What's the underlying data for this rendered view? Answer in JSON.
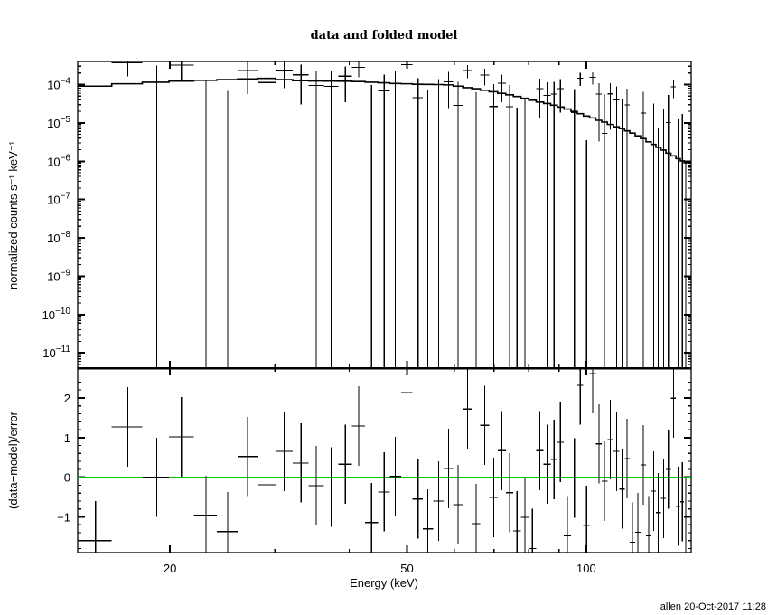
{
  "chart_data": {
    "type": "scatter",
    "title": "data and folded model",
    "footer": "allen  20-Oct-2017 11:28",
    "xlabel": "Energy (keV)",
    "xscale": "log",
    "xlim": [
      14,
      150
    ],
    "xticks": [
      20,
      50,
      100
    ],
    "xtick_labels": [
      "20",
      "50",
      "100"
    ],
    "colors": {
      "data": "#000000",
      "model": "#000000",
      "zero_line": "#00cc00",
      "frame": "#000000"
    },
    "panels": [
      {
        "name": "spectrum",
        "ylabel": "normalized counts s⁻¹ keV⁻¹",
        "yscale": "log",
        "ylim": [
          4e-12,
          0.0004
        ],
        "yticks": [
          0.0001,
          1e-05,
          1e-06,
          1e-07,
          1e-08,
          1e-09,
          1e-10,
          1e-11
        ],
        "ytick_base": "10",
        "ytick_exponents": [
          "−4",
          "−5",
          "−6",
          "−7",
          "−8",
          "−9",
          "−10",
          "−11"
        ]
      },
      {
        "name": "residuals",
        "ylabel": "(data−model)/error",
        "yscale": "linear",
        "ylim": [
          -1.9,
          2.75
        ],
        "yticks": [
          2,
          1,
          0,
          -1
        ],
        "ytick_labels": [
          "2",
          "1",
          "0",
          "−1"
        ],
        "reference_line": 0
      }
    ],
    "energy_keV": [
      15.0,
      17.0,
      19.0,
      20.9,
      23.0,
      25.0,
      27.0,
      29.1,
      31.1,
      33.2,
      35.2,
      37.3,
      39.4,
      41.5,
      43.6,
      45.8,
      47.8,
      50.0,
      52.2,
      54.2,
      56.5,
      58.7,
      60.9,
      63.2,
      65.3,
      67.5,
      69.9,
      72.1,
      74.4,
      76.5,
      78.9,
      81.2,
      83.6,
      86.0,
      88.3,
      90.5,
      93.0,
      95.5,
      97.7,
      100.1,
      102.5,
      105.0,
      107.3,
      109.7,
      112.4,
      114.8,
      117.1,
      119.5,
      122.1,
      124.6,
      127.3,
      129.7,
      132.1,
      134.8,
      137.3,
      140.1,
      142.7,
      145.0,
      146.9
    ],
    "residual": [
      -1.6,
      1.27,
      0.0,
      1.02,
      -0.96,
      -1.37,
      0.52,
      -0.19,
      0.65,
      0.36,
      -0.21,
      -0.25,
      0.33,
      1.29,
      -1.14,
      -0.37,
      0.02,
      2.13,
      -0.55,
      -1.3,
      -0.6,
      0.22,
      -0.69,
      1.72,
      -1.17,
      1.31,
      -0.51,
      0.67,
      -0.39,
      -1.35,
      -1.01,
      -1.8,
      0.67,
      0.33,
      0.45,
      0.88,
      -1.48,
      -0.02,
      2.32,
      -1.21,
      2.61,
      0.84,
      -0.1,
      0.95,
      0.65,
      -0.3,
      0.47,
      -1.64,
      -1.39,
      0.31,
      -1.48,
      -0.35,
      -0.89,
      -0.53,
      0.2,
      1.99,
      -0.73,
      -0.62,
      -1.0
    ],
    "model": [
      9.1e-05,
      0.000105,
      0.000115,
      0.000123,
      0.000129,
      0.000135,
      0.00014,
      0.000145,
      0.000135,
      0.000126,
      0.000124,
      0.000123,
      0.000122,
      0.00012,
      0.000115,
      0.000111,
      0.000107,
      0.000105,
      0.000102,
      0.000101,
      0.0001,
      9.8e-05,
      9.1e-05,
      8.3e-05,
      7.8e-05,
      7.1e-05,
      6.5e-05,
      5.9e-05,
      5.4e-05,
      4.9e-05,
      4.4e-05,
      3.9e-05,
      3.5e-05,
      3.2e-05,
      2.9e-05,
      2.6e-05,
      2.3e-05,
      2e-05,
      1.74e-05,
      1.51e-05,
      1.35e-05,
      1.17e-05,
      1.05e-05,
      9.1e-06,
      7.9e-06,
      7.1e-06,
      6.2e-06,
      5.4e-06,
      4.6e-06,
      3.9e-06,
      3.2e-06,
      2.75e-06,
      2.3e-06,
      1.95e-06,
      1.62e-06,
      1.38e-06,
      1.17e-06,
      1.02e-06,
      9.1e-07
    ],
    "error": [
      0.00022,
      0.00021,
      0.0002,
      0.000195,
      0.00019,
      0.00018,
      0.000175,
      0.000165,
      0.000155,
      0.00015,
      0.00014,
      0.000135,
      0.00013,
      0.000125,
      0.00012,
      0.000115,
      0.00011,
      0.000106,
      0.000103,
      0.0001,
      9.7e-05,
      9.4e-05,
      9e-05,
      8.7e-05,
      8.4e-05,
      8e-05,
      7.5e-05,
      7.3e-05,
      7.1e-05,
      6.9e-05,
      6.7e-05,
      6.5e-05,
      6.4e-05,
      6.2e-05,
      6.1e-05,
      6e-05,
      5.9e-05,
      5.7e-05,
      5.6e-05,
      5.5e-05,
      5.4e-05,
      5.3e-05,
      5.2e-05,
      5.1e-05,
      5e-05,
      4.9e-05,
      4.9e-05,
      4.8e-05,
      4.7e-05,
      4.6e-05,
      4.6e-05,
      4.5e-05,
      4.4e-05,
      4.4e-05,
      4.3e-05,
      4.3e-05,
      4.2e-05,
      4.2e-05,
      4.2e-05
    ]
  }
}
